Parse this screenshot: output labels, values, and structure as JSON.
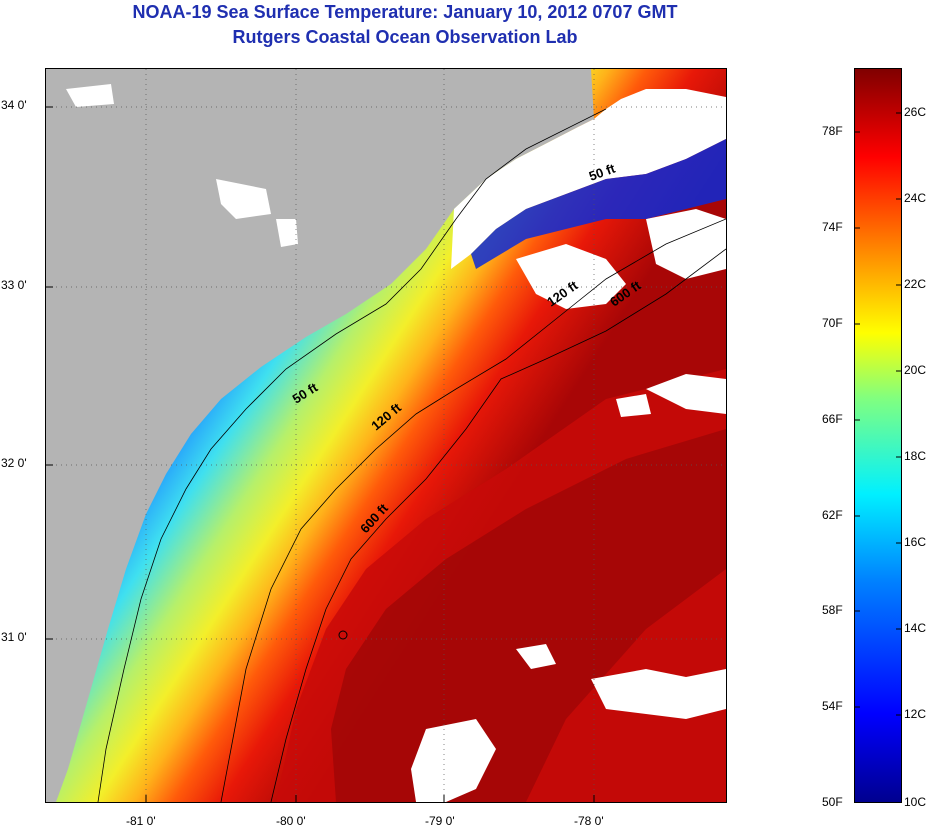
{
  "header": {
    "title": "NOAA-19 Sea Surface Temperature:  January 10, 2012 0707 GMT",
    "subtitle": "Rutgers Coastal Ocean Observation Lab"
  },
  "map": {
    "lon_ticks": [
      "-81 0'",
      "-80 0'",
      "-79 0'",
      "-78 0'"
    ],
    "lat_ticks": [
      "34 0'",
      "33 0'",
      "32 0'",
      "31 0'"
    ],
    "isobath_labels": [
      "50 ft",
      "120 ft",
      "600 ft",
      "50 ft",
      "120 ft",
      "600 ft"
    ]
  },
  "colorbar": {
    "fahrenheit": [
      "78F",
      "74F",
      "70F",
      "66F",
      "62F",
      "58F",
      "54F",
      "50F"
    ],
    "celsius": [
      "26C",
      "24C",
      "22C",
      "20C",
      "18C",
      "16C",
      "14C",
      "12C",
      "10C"
    ]
  },
  "colors": {
    "land": "#b4b4b4",
    "cloud": "#ffffff",
    "title": "#1f2fb0"
  }
}
